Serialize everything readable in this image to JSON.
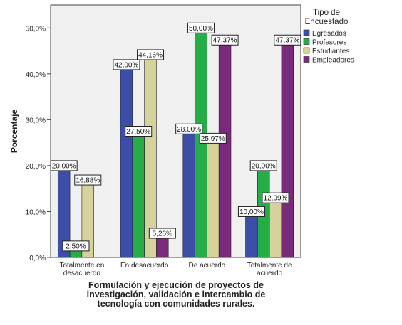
{
  "chart_data": {
    "type": "bar",
    "title": "",
    "xlabel": "Formulación y ejecución de proyectos de\ninvestigación, validación e intercambio de\ntecnología con comunidades rurales.",
    "ylabel": "Porcentaje",
    "ylim": [
      0,
      55
    ],
    "yticks": [
      0,
      10,
      20,
      30,
      40,
      50
    ],
    "ytick_labels": [
      "0,0%",
      "10,0%",
      "20,0%",
      "30,0%",
      "40,0%",
      "50,0%"
    ],
    "grid": false,
    "legend_position": "right",
    "legend_title": "Tipo de\nEncuestado",
    "categories": [
      "Totalmente en\ndesacuerdo",
      "En desacuerdo",
      "De acuerdo",
      "Totalmente de\nacuerdo"
    ],
    "series": [
      {
        "name": "Egresados",
        "color": "#3d4ea8",
        "values": [
          20.0,
          42.0,
          28.0,
          10.0
        ],
        "labels": [
          "20,00%",
          "42,00%",
          "28,00%",
          "10,00%"
        ]
      },
      {
        "name": "Profesores",
        "color": "#25ad48",
        "values": [
          2.5,
          27.5,
          50.0,
          20.0
        ],
        "labels": [
          "2,50%",
          "27,50%",
          "50,00%",
          "20,00%"
        ]
      },
      {
        "name": "Estudiantes",
        "color": "#d6d29b",
        "values": [
          16.88,
          44.16,
          25.97,
          12.99
        ],
        "labels": [
          "16,88%",
          "44,16%",
          "25,97%",
          "12,99%"
        ]
      },
      {
        "name": "Empleadores",
        "color": "#7b2a7b",
        "values": [
          null,
          5.26,
          47.37,
          47.37
        ],
        "labels": [
          null,
          "5,26%",
          "47,37%",
          "47,37%"
        ]
      }
    ],
    "plot_background": "#f0f0f0"
  }
}
